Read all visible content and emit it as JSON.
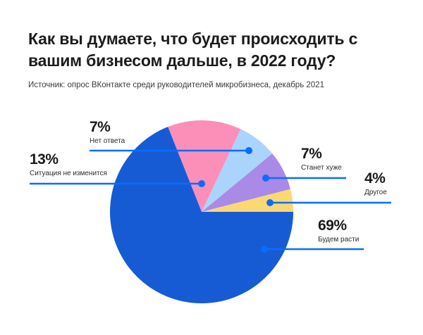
{
  "header": {
    "title": "Как вы думаете, что будет происходить с вашим бизнесом дальше, в 2022 году?",
    "source": "Источник: опрос ВКонтакте среди руководителей микробизнеса, декабрь 2021"
  },
  "colors": {
    "leader_line": "#0a6cff",
    "grow": "#175bd4",
    "no_change": "#fb8fb7",
    "no_answer": "#aad4fc",
    "worse": "#a98ae7",
    "other": "#fcd873"
  },
  "labels": {
    "grow": {
      "pct": "69%",
      "caption": "Будем расти"
    },
    "no_change": {
      "pct": "13%",
      "caption": "Ситуация не изменится"
    },
    "no_answer": {
      "pct": "7%",
      "caption": "Нет ответа"
    },
    "worse": {
      "pct": "7%",
      "caption": "Станет хуже"
    },
    "other": {
      "pct": "4%",
      "caption": "Другое"
    }
  },
  "chart_data": {
    "type": "pie",
    "title": "Как вы думаете, что будет происходить с вашим бизнесом дальше, в 2022 году?",
    "subtitle": "Источник: опрос ВКонтакте среди руководителей микробизнеса, декабрь 2021",
    "categories": [
      "Будем расти",
      "Ситуация не изменится",
      "Нет ответа",
      "Станет хуже",
      "Другое"
    ],
    "values": [
      69,
      13,
      7,
      7,
      4
    ],
    "unit": "%",
    "colors": [
      "#175bd4",
      "#fb8fb7",
      "#aad4fc",
      "#a98ae7",
      "#fcd873"
    ],
    "legend": "leader-line labels"
  }
}
